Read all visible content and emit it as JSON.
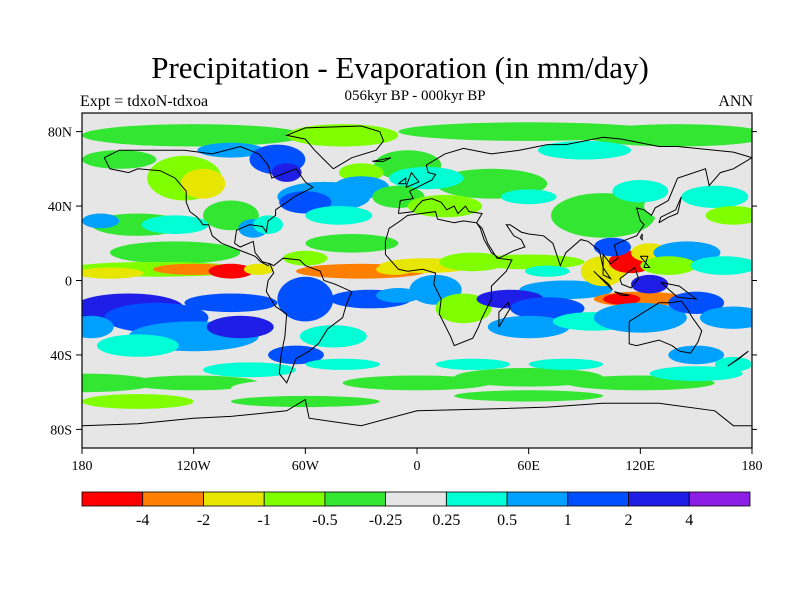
{
  "figure": {
    "title": "Precipitation - Evaporation (in mm/day)",
    "subtitle": "056kyr BP - 000kyr BP",
    "left_label": "Expt = tdxoN-tdxoa",
    "right_label": "ANN"
  },
  "map": {
    "projection": "cylindrical-equidistant",
    "lon_range": [
      -180,
      180
    ],
    "lat_range": [
      -90,
      90
    ],
    "missing_color": "#e6e6e6",
    "lat_tick_labels": [
      "80N",
      "40N",
      "0",
      "40S",
      "80S"
    ],
    "lon_tick_labels": [
      "180",
      "120W",
      "60W",
      "0",
      "60E",
      "120E",
      "180"
    ]
  },
  "colorbar": {
    "colors": [
      "#ff0000",
      "#ff8000",
      "#e6e600",
      "#80ff00",
      "#32e632",
      "#e6e6e6",
      "#00ffd5",
      "#00a0ff",
      "#0050ff",
      "#1e1ee6",
      "#8c1ee6"
    ],
    "labels": [
      "-4",
      "-2",
      "-1",
      "-0.5",
      "-0.25",
      "0.25",
      "0.5",
      "1",
      "2",
      "4"
    ]
  }
}
